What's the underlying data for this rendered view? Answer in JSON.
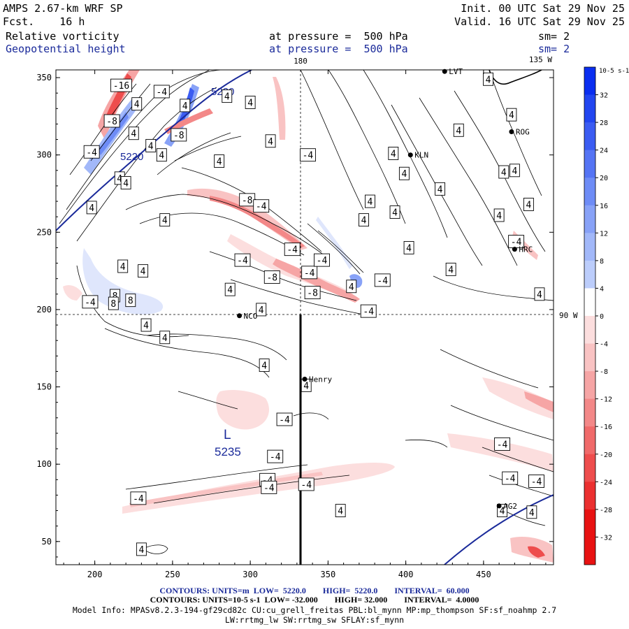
{
  "header": {
    "model": "AMPS 2.67-km WRF SP",
    "fcst": "Fcst.    16 h",
    "init": "Init. 00 UTC Sat 29 Nov 25",
    "valid": "Valid. 16 UTC Sat 29 Nov 25",
    "field1_name": "Relative vorticity",
    "field1_pressure": "at pressure =  500 hPa",
    "field1_sm": "sm= 2",
    "field2_name": "Geopotential height",
    "field2_pressure": "at pressure =  500 hPa",
    "field2_sm": "sm= 2"
  },
  "map": {
    "meridian_180_label": "180",
    "meridian_135w_label": "135 W",
    "meridian_90w_label": "90 W",
    "stations": [
      {
        "name": "LVT",
        "x": 425,
        "y": 354
      },
      {
        "name": "ROG",
        "x": 468,
        "y": 315
      },
      {
        "name": "KLN",
        "x": 403,
        "y": 300
      },
      {
        "name": "HRC",
        "x": 470,
        "y": 239
      },
      {
        "name": "NCO",
        "x": 293,
        "y": 196
      },
      {
        "name": "Henry",
        "x": 335,
        "y": 155
      },
      {
        "name": "AG2",
        "x": 460,
        "y": 73
      }
    ],
    "low_label": "L",
    "low_value": "5235",
    "height_labels": [
      "5220",
      "5220"
    ]
  },
  "chart_data": {
    "type": "contour",
    "fields": [
      {
        "name": "Relative vorticity",
        "units": "10^-5 s^-1",
        "low": -32,
        "high": 32,
        "interval": 4
      },
      {
        "name": "Geopotential height",
        "units": "m",
        "low": 5220,
        "high": 5220,
        "interval": 60
      }
    ],
    "xlim": [
      175,
      495
    ],
    "ylim": [
      35,
      355
    ],
    "x_ticks": [
      200,
      250,
      300,
      350,
      400,
      450
    ],
    "y_ticks": [
      50,
      100,
      150,
      200,
      250,
      300,
      350
    ],
    "colorbar": {
      "unit_label": "10-5 s-1",
      "levels": [
        32,
        28,
        24,
        20,
        16,
        12,
        8,
        4,
        0,
        -4,
        -8,
        -12,
        -16,
        -20,
        -24,
        -28,
        -32
      ],
      "colors": [
        "#0a2ef0",
        "#2246f0",
        "#3b5cf2",
        "#5574f4",
        "#6e8cf6",
        "#88a2f7",
        "#a2b8f9",
        "#bccdfb",
        "#ffffff",
        "#fcdede",
        "#f9c3c3",
        "#f6a5a5",
        "#f38888",
        "#f06a6a",
        "#ee4d4d",
        "#eb3030",
        "#e81212"
      ]
    },
    "contour_labels": [
      {
        "text": "-16",
        "x": 217,
        "y": 345
      },
      {
        "text": "-4",
        "x": 243,
        "y": 341
      },
      {
        "text": "4",
        "x": 227,
        "y": 333
      },
      {
        "text": "-8",
        "x": 211,
        "y": 322
      },
      {
        "text": "4",
        "x": 225,
        "y": 314
      },
      {
        "text": "4",
        "x": 258,
        "y": 332
      },
      {
        "text": "-8",
        "x": 254,
        "y": 313
      },
      {
        "text": "4",
        "x": 243,
        "y": 300
      },
      {
        "text": "-4",
        "x": 198,
        "y": 302
      },
      {
        "text": "4",
        "x": 236,
        "y": 306
      },
      {
        "text": "4",
        "x": 285,
        "y": 338
      },
      {
        "text": "4",
        "x": 300,
        "y": 334
      },
      {
        "text": "4",
        "x": 313,
        "y": 309
      },
      {
        "text": "4",
        "x": 280,
        "y": 296
      },
      {
        "text": "-4",
        "x": 337,
        "y": 300
      },
      {
        "text": "4",
        "x": 216,
        "y": 285
      },
      {
        "text": "4",
        "x": 198,
        "y": 266
      },
      {
        "text": "4",
        "x": 220,
        "y": 282
      },
      {
        "text": "-8",
        "x": 298,
        "y": 271
      },
      {
        "text": "-4",
        "x": 307,
        "y": 267
      },
      {
        "text": "4",
        "x": 245,
        "y": 258
      },
      {
        "text": "-4",
        "x": 295,
        "y": 232
      },
      {
        "text": "-4",
        "x": 327,
        "y": 239
      },
      {
        "text": "-8",
        "x": 314,
        "y": 221
      },
      {
        "text": "-4",
        "x": 338,
        "y": 224
      },
      {
        "text": "-8",
        "x": 340,
        "y": 211
      },
      {
        "text": "4",
        "x": 231,
        "y": 225
      },
      {
        "text": "4",
        "x": 287,
        "y": 213
      },
      {
        "text": "-4",
        "x": 346,
        "y": 232
      },
      {
        "text": "4",
        "x": 365,
        "y": 215
      },
      {
        "text": "-4",
        "x": 385,
        "y": 219
      },
      {
        "text": "-4",
        "x": 376,
        "y": 199
      },
      {
        "text": "4",
        "x": 218,
        "y": 228
      },
      {
        "text": "8",
        "x": 213,
        "y": 209
      },
      {
        "text": "8",
        "x": 212,
        "y": 204
      },
      {
        "text": "8",
        "x": 223,
        "y": 206
      },
      {
        "text": "-4",
        "x": 197,
        "y": 205
      },
      {
        "text": "4",
        "x": 233,
        "y": 190
      },
      {
        "text": "4",
        "x": 245,
        "y": 182
      },
      {
        "text": "4",
        "x": 307,
        "y": 200
      },
      {
        "text": "4",
        "x": 309,
        "y": 164
      },
      {
        "text": "4",
        "x": 336,
        "y": 151
      },
      {
        "text": "-4",
        "x": 322,
        "y": 129
      },
      {
        "text": "-4",
        "x": 316,
        "y": 105
      },
      {
        "text": "-4",
        "x": 311,
        "y": 90
      },
      {
        "text": "-4",
        "x": 312,
        "y": 85
      },
      {
        "text": "-4",
        "x": 336,
        "y": 87
      },
      {
        "text": "-4",
        "x": 228,
        "y": 78
      },
      {
        "text": "4",
        "x": 358,
        "y": 70
      },
      {
        "text": "4",
        "x": 230,
        "y": 45
      },
      {
        "text": "-4",
        "x": 462,
        "y": 113
      },
      {
        "text": "-4",
        "x": 467,
        "y": 91
      },
      {
        "text": "-4",
        "x": 484,
        "y": 89
      },
      {
        "text": "4",
        "x": 481,
        "y": 69
      },
      {
        "text": "4",
        "x": 462,
        "y": 70
      },
      {
        "text": "4",
        "x": 453,
        "y": 349
      },
      {
        "text": "4",
        "x": 468,
        "y": 326
      },
      {
        "text": "4",
        "x": 434,
        "y": 316
      },
      {
        "text": "4",
        "x": 392,
        "y": 301
      },
      {
        "text": "4",
        "x": 399,
        "y": 288
      },
      {
        "text": "4",
        "x": 422,
        "y": 278
      },
      {
        "text": "4",
        "x": 393,
        "y": 263
      },
      {
        "text": "4",
        "x": 377,
        "y": 270
      },
      {
        "text": "4",
        "x": 373,
        "y": 258
      },
      {
        "text": "4",
        "x": 402,
        "y": 240
      },
      {
        "text": "4",
        "x": 429,
        "y": 226
      },
      {
        "text": "-4",
        "x": 471,
        "y": 244
      },
      {
        "text": "4",
        "x": 460,
        "y": 261
      },
      {
        "text": "4",
        "x": 479,
        "y": 268
      },
      {
        "text": "4",
        "x": 486,
        "y": 210
      },
      {
        "text": "4",
        "x": 463,
        "y": 289
      },
      {
        "text": "4",
        "x": 470,
        "y": 290
      }
    ]
  },
  "footer": {
    "line1": "CONTOURS: UNITS=m  LOW=  5220.0        HIGH=  5220.0        INTERVAL=  60.000",
    "line2": "CONTOURS: UNITS=10-5 s-1  LOW= -32.000        HIGH= 32.000        INTERVAL=  4.0000",
    "line3": "Model Info: MPASv8.2.3-194-gf29cd82c CU:cu_grell_freitas PBL:bl_mynn MP:mp_thompson SF:sf_noahmp 2.7",
    "line4": "LW:rrtmg_lw SW:rrtmg_sw SFLAY:sf_mynn"
  }
}
